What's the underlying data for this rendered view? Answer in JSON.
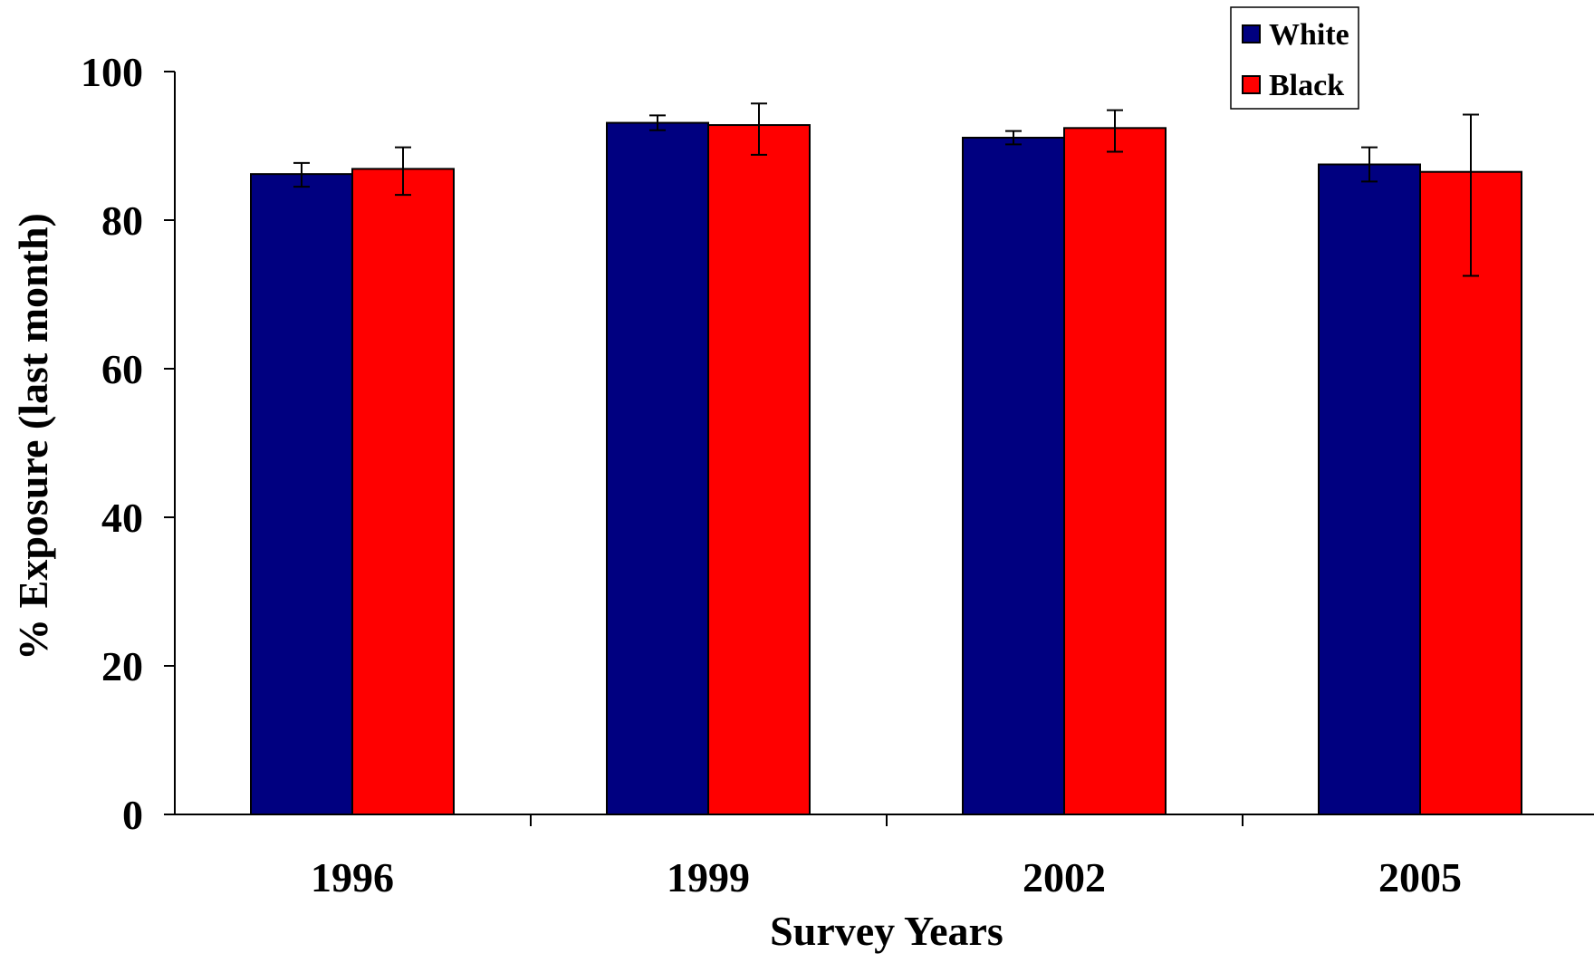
{
  "chart_data": {
    "type": "bar",
    "xlabel": "Survey Years",
    "ylabel": "% Exposure (last month)",
    "categories": [
      "1996",
      "1999",
      "2002",
      "2005"
    ],
    "ylim": [
      0,
      100
    ],
    "yticks": [
      "0",
      "20",
      "40",
      "60",
      "80",
      "100"
    ],
    "grid": false,
    "legend_position": "top-right",
    "series": [
      {
        "name": "White",
        "color": "#000080",
        "values": [
          86.2,
          93.1,
          91.1,
          87.5
        ],
        "error_low": [
          84.5,
          92.1,
          90.2,
          85.2
        ],
        "error_high": [
          87.7,
          94.1,
          92.0,
          89.8
        ]
      },
      {
        "name": "Black",
        "color": "#ff0000",
        "values": [
          86.9,
          92.8,
          92.4,
          86.5
        ],
        "error_low": [
          83.4,
          88.8,
          89.2,
          72.5
        ],
        "error_high": [
          89.8,
          95.7,
          94.8,
          94.2
        ]
      }
    ]
  }
}
